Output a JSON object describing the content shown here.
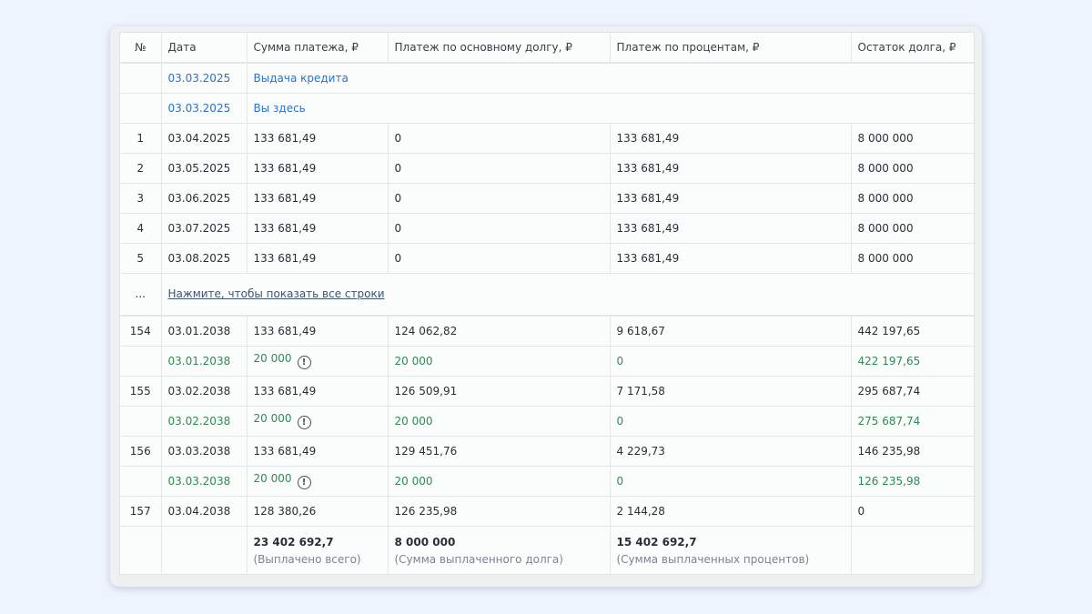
{
  "headers": {
    "num": "№",
    "date": "Дата",
    "payment": "Сумма платежа, ₽",
    "principal": "Платеж по основному долгу, ₽",
    "interest": "Платеж по процентам, ₽",
    "balance": "Остаток долга, ₽"
  },
  "intro_rows": [
    {
      "date": "03.03.2025",
      "label": "Выдача кредита"
    },
    {
      "date": "03.03.2025",
      "label": "Вы здесь"
    }
  ],
  "first_rows": [
    {
      "num": "1",
      "date": "03.04.2025",
      "payment": "133 681,49",
      "principal": "0",
      "interest": "133 681,49",
      "balance": "8 000 000"
    },
    {
      "num": "2",
      "date": "03.05.2025",
      "payment": "133 681,49",
      "principal": "0",
      "interest": "133 681,49",
      "balance": "8 000 000"
    },
    {
      "num": "3",
      "date": "03.06.2025",
      "payment": "133 681,49",
      "principal": "0",
      "interest": "133 681,49",
      "balance": "8 000 000"
    },
    {
      "num": "4",
      "date": "03.07.2025",
      "payment": "133 681,49",
      "principal": "0",
      "interest": "133 681,49",
      "balance": "8 000 000"
    },
    {
      "num": "5",
      "date": "03.08.2025",
      "payment": "133 681,49",
      "principal": "0",
      "interest": "133 681,49",
      "balance": "8 000 000"
    }
  ],
  "expand": {
    "ellipsis": "...",
    "link_text": "Нажмите, чтобы показать все строки"
  },
  "last_rows": [
    {
      "num": "154",
      "date": "03.01.2038",
      "payment": "133 681,49",
      "principal": "124 062,82",
      "interest": "9 618,67",
      "balance": "442 197,65"
    },
    {
      "num": "",
      "date": "03.01.2038",
      "payment": "20 000",
      "principal": "20 000",
      "interest": "0",
      "balance": "422 197,65",
      "extra": true
    },
    {
      "num": "155",
      "date": "03.02.2038",
      "payment": "133 681,49",
      "principal": "126 509,91",
      "interest": "7 171,58",
      "balance": "295 687,74"
    },
    {
      "num": "",
      "date": "03.02.2038",
      "payment": "20 000",
      "principal": "20 000",
      "interest": "0",
      "balance": "275 687,74",
      "extra": true
    },
    {
      "num": "156",
      "date": "03.03.2038",
      "payment": "133 681,49",
      "principal": "129 451,76",
      "interest": "4 229,73",
      "balance": "146 235,98"
    },
    {
      "num": "",
      "date": "03.03.2038",
      "payment": "20 000",
      "principal": "20 000",
      "interest": "0",
      "balance": "126 235,98",
      "extra": true
    },
    {
      "num": "157",
      "date": "03.04.2038",
      "payment": "128 380,26",
      "principal": "126 235,98",
      "interest": "2 144,28",
      "balance": "0"
    }
  ],
  "extra_icon": "!",
  "totals": {
    "paid_total": "23 402 692,7",
    "paid_total_caption": "(Выплачено всего)",
    "debt_total": "8 000 000",
    "debt_total_caption": "(Сумма выплаченного долга)",
    "interest_total": "15 402 692,7",
    "interest_total_caption": "(Сумма выплаченных процентов)"
  },
  "colors": {
    "accent_blue": "#2b73c9",
    "extra_green": "#2e8a54",
    "background": "#eef4fd"
  }
}
